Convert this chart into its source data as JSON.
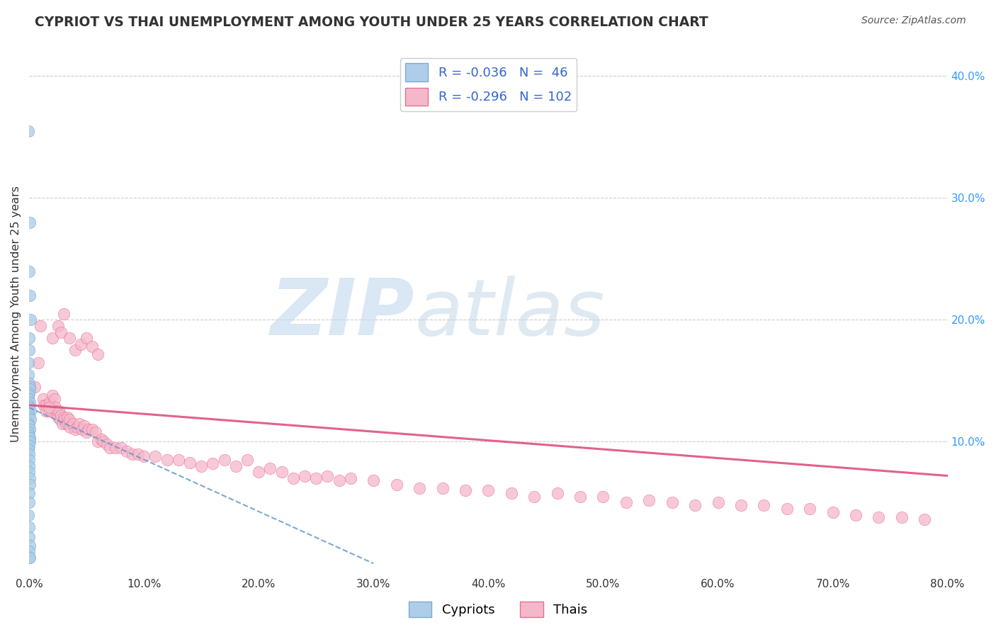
{
  "title": "CYPRIOT VS THAI UNEMPLOYMENT AMONG YOUTH UNDER 25 YEARS CORRELATION CHART",
  "source": "Source: ZipAtlas.com",
  "ylabel": "Unemployment Among Youth under 25 years",
  "xlim": [
    0.0,
    0.8
  ],
  "ylim": [
    -0.01,
    0.42
  ],
  "xticks": [
    0.0,
    0.1,
    0.2,
    0.3,
    0.4,
    0.5,
    0.6,
    0.7,
    0.8
  ],
  "xtick_labels": [
    "0.0%",
    "10.0%",
    "20.0%",
    "30.0%",
    "40.0%",
    "50.0%",
    "60.0%",
    "70.0%",
    "80.0%"
  ],
  "yticks_right": [
    0.1,
    0.2,
    0.3,
    0.4
  ],
  "ytick_labels_right": [
    "10.0%",
    "20.0%",
    "30.0%",
    "40.0%"
  ],
  "cypriot_color": "#aecde8",
  "thai_color": "#f5b8cb",
  "cypriot_edge": "#7aaad0",
  "thai_edge": "#e87090",
  "cypriot_line_color": "#6699cc",
  "thai_line_color": "#e05080",
  "legend_label_cypriot": "R = -0.036   N =  46",
  "legend_label_thai": "R = -0.296   N = 102",
  "watermark_zip": "ZIP",
  "watermark_atlas": "atlas",
  "watermark_color_zip": "#c5d8ee",
  "watermark_color_atlas": "#b8cfe8",
  "background_color": "#ffffff",
  "grid_color": "#cccccc",
  "cypriot_scatter_x": [
    0.0,
    0.0,
    0.0,
    0.0,
    0.0,
    0.0,
    0.0,
    0.0,
    0.0,
    0.0,
    0.0,
    0.0,
    0.0,
    0.0,
    0.0,
    0.0,
    0.0,
    0.0,
    0.0,
    0.0,
    0.0,
    0.0,
    0.0,
    0.0,
    0.0,
    0.0,
    0.0,
    0.0,
    0.0,
    0.0,
    0.0,
    0.0,
    0.0,
    0.0,
    0.0,
    0.0,
    0.0,
    0.0,
    0.0,
    0.0,
    0.0,
    0.0,
    0.0,
    0.0,
    0.0,
    0.0
  ],
  "cypriot_scatter_y": [
    0.355,
    0.28,
    0.24,
    0.22,
    0.2,
    0.185,
    0.175,
    0.165,
    0.155,
    0.148,
    0.145,
    0.143,
    0.14,
    0.138,
    0.135,
    0.132,
    0.13,
    0.128,
    0.125,
    0.123,
    0.12,
    0.118,
    0.115,
    0.113,
    0.11,
    0.108,
    0.105,
    0.103,
    0.1,
    0.097,
    0.094,
    0.09,
    0.085,
    0.08,
    0.075,
    0.07,
    0.065,
    0.058,
    0.05,
    0.04,
    0.03,
    0.022,
    0.015,
    0.01,
    0.005,
    0.005
  ],
  "thai_scatter_x": [
    0.005,
    0.008,
    0.01,
    0.012,
    0.013,
    0.015,
    0.016,
    0.017,
    0.018,
    0.019,
    0.02,
    0.022,
    0.023,
    0.024,
    0.025,
    0.026,
    0.027,
    0.028,
    0.029,
    0.03,
    0.031,
    0.032,
    0.033,
    0.034,
    0.035,
    0.036,
    0.038,
    0.04,
    0.042,
    0.044,
    0.046,
    0.048,
    0.05,
    0.052,
    0.055,
    0.058,
    0.06,
    0.063,
    0.065,
    0.068,
    0.07,
    0.075,
    0.08,
    0.085,
    0.09,
    0.095,
    0.1,
    0.11,
    0.12,
    0.13,
    0.14,
    0.15,
    0.16,
    0.17,
    0.18,
    0.19,
    0.2,
    0.21,
    0.22,
    0.23,
    0.24,
    0.25,
    0.26,
    0.27,
    0.28,
    0.3,
    0.32,
    0.34,
    0.36,
    0.38,
    0.4,
    0.42,
    0.44,
    0.46,
    0.48,
    0.5,
    0.52,
    0.54,
    0.56,
    0.58,
    0.6,
    0.62,
    0.64,
    0.66,
    0.68,
    0.7,
    0.72,
    0.74,
    0.76,
    0.78,
    0.025,
    0.03,
    0.02,
    0.028,
    0.035,
    0.04,
    0.045,
    0.05,
    0.055,
    0.06,
    0.015,
    0.017
  ],
  "thai_scatter_y": [
    0.145,
    0.165,
    0.195,
    0.135,
    0.13,
    0.13,
    0.125,
    0.128,
    0.132,
    0.125,
    0.138,
    0.135,
    0.128,
    0.125,
    0.12,
    0.125,
    0.118,
    0.122,
    0.115,
    0.12,
    0.118,
    0.115,
    0.12,
    0.115,
    0.118,
    0.112,
    0.115,
    0.11,
    0.112,
    0.115,
    0.11,
    0.113,
    0.108,
    0.11,
    0.11,
    0.108,
    0.1,
    0.102,
    0.1,
    0.098,
    0.095,
    0.095,
    0.095,
    0.092,
    0.09,
    0.09,
    0.088,
    0.088,
    0.085,
    0.085,
    0.083,
    0.08,
    0.082,
    0.085,
    0.08,
    0.085,
    0.075,
    0.078,
    0.075,
    0.07,
    0.072,
    0.07,
    0.072,
    0.068,
    0.07,
    0.068,
    0.065,
    0.062,
    0.062,
    0.06,
    0.06,
    0.058,
    0.055,
    0.058,
    0.055,
    0.055,
    0.05,
    0.052,
    0.05,
    0.048,
    0.05,
    0.048,
    0.048,
    0.045,
    0.045,
    0.042,
    0.04,
    0.038,
    0.038,
    0.036,
    0.195,
    0.205,
    0.185,
    0.19,
    0.185,
    0.175,
    0.18,
    0.185,
    0.178,
    0.172,
    0.125,
    0.128
  ],
  "cypriot_trend_x0": 0.0,
  "cypriot_trend_x1": 0.3,
  "cypriot_trend_y0": 0.128,
  "cypriot_trend_y1": 0.0,
  "thai_trend_x0": 0.0,
  "thai_trend_x1": 0.8,
  "thai_trend_y0": 0.13,
  "thai_trend_y1": 0.072
}
